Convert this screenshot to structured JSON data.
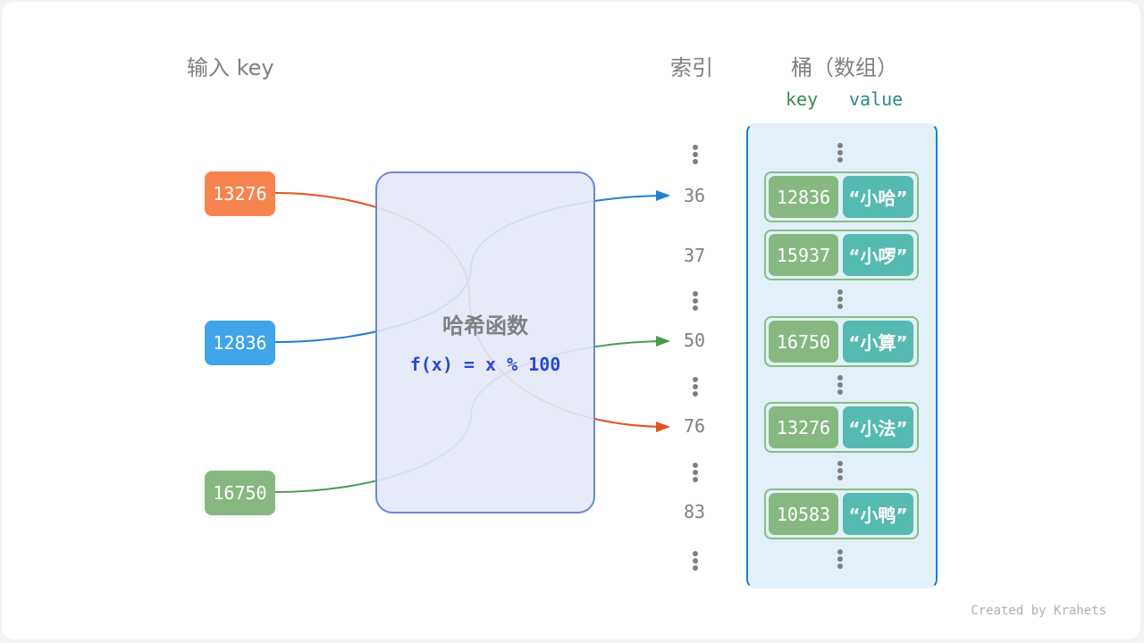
{
  "headers": {
    "input": "输入 key",
    "index": "索引",
    "bucket": "桶（数组）",
    "key": "key",
    "value": "value"
  },
  "inputs": [
    {
      "key": "13276",
      "color": "#f7834f"
    },
    {
      "key": "12836",
      "color": "#3fa4ea"
    },
    {
      "key": "16750",
      "color": "#85b980"
    }
  ],
  "hash": {
    "title": "哈希函数",
    "formula": "f(x) = x % 100"
  },
  "indices": [
    "36",
    "37",
    "50",
    "76",
    "83"
  ],
  "entries": [
    {
      "key": "12836",
      "value": "“小哈”"
    },
    {
      "key": "15937",
      "value": "“小啰”"
    },
    {
      "key": "16750",
      "value": "“小算”"
    },
    {
      "key": "13276",
      "value": "“小法”"
    },
    {
      "key": "10583",
      "value": "“小鸭”"
    }
  ],
  "credit": "Created by Krahets"
}
